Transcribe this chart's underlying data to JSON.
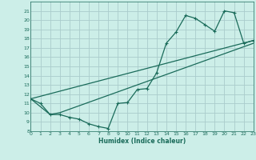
{
  "bg_color": "#cceee8",
  "grid_color": "#aacccc",
  "line_color": "#1a6b5a",
  "xlabel": "Humidex (Indice chaleur)",
  "xlim": [
    0,
    23
  ],
  "ylim": [
    8,
    22
  ],
  "xticks": [
    0,
    1,
    2,
    3,
    4,
    5,
    6,
    7,
    8,
    9,
    10,
    11,
    12,
    13,
    14,
    15,
    16,
    17,
    18,
    19,
    20,
    21,
    22,
    23
  ],
  "yticks": [
    8,
    9,
    10,
    11,
    12,
    13,
    14,
    15,
    16,
    17,
    18,
    19,
    20,
    21
  ],
  "line1_x": [
    0,
    1,
    2,
    3,
    4,
    5,
    6,
    7,
    8,
    9,
    10,
    11,
    12,
    13,
    14,
    15,
    16,
    17,
    18,
    19,
    20,
    21,
    22,
    23
  ],
  "line1_y": [
    11.5,
    11.0,
    9.8,
    9.8,
    9.5,
    9.3,
    8.8,
    8.5,
    8.3,
    11.0,
    11.1,
    12.5,
    12.6,
    14.3,
    17.5,
    18.7,
    20.5,
    20.2,
    19.5,
    18.8,
    21.0,
    20.8,
    17.5,
    17.8
  ],
  "line2_x": [
    0,
    2,
    3,
    23
  ],
  "line2_y": [
    11.5,
    9.8,
    10.0,
    17.5
  ],
  "line3_x": [
    0,
    23
  ],
  "line3_y": [
    11.5,
    17.8
  ]
}
